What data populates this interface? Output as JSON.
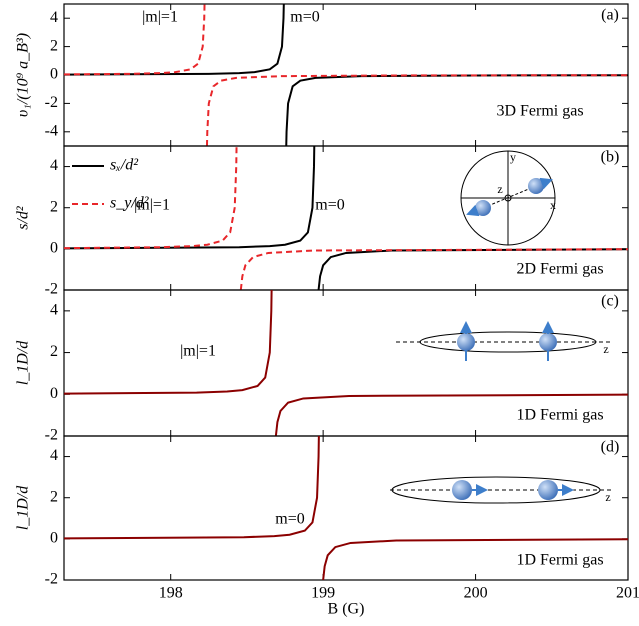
{
  "chart_data": [
    {
      "type": "line",
      "label": "(a)",
      "ylabel": "υ₁/(10⁹ a_B³)",
      "annotations": [
        "|m|=1",
        "m=0",
        "3D Fermi gas"
      ],
      "xlim": [
        197.3,
        201
      ],
      "xticks": [
        198,
        199,
        200,
        201
      ],
      "ylim": [
        -5,
        5
      ],
      "yticks": [
        -4,
        -2,
        0,
        2,
        4
      ],
      "series": [
        {
          "name": "m=0",
          "color": "#000000",
          "dash": false,
          "x": [
            197.3,
            198.25,
            198.45,
            198.55,
            198.65,
            198.7,
            198.73,
            198.74,
            198.742,
            null,
            198.758,
            198.76,
            198.77,
            198.8,
            198.85,
            198.95,
            199.25,
            200,
            201
          ],
          "values": [
            0.028,
            0.08,
            0.133,
            0.2,
            0.4,
            0.8,
            2,
            4,
            5,
            null,
            -5,
            -4,
            -2,
            -0.8,
            -0.4,
            -0.2,
            -0.08,
            -0.032,
            -0.018
          ]
        },
        {
          "name": "|m|=1",
          "color": "#e8262a",
          "dash": true,
          "x": [
            197.3,
            197.73,
            197.93,
            198.03,
            198.13,
            198.18,
            198.21,
            198.22,
            198.222,
            null,
            198.238,
            198.24,
            198.25,
            198.28,
            198.33,
            198.43,
            198.73,
            199.5,
            201
          ],
          "values": [
            0.043,
            0.08,
            0.133,
            0.2,
            0.4,
            0.8,
            2,
            4,
            5,
            null,
            -5,
            -4,
            -2,
            -0.8,
            -0.4,
            -0.2,
            -0.08,
            -0.031,
            -0.014
          ]
        }
      ]
    },
    {
      "type": "line",
      "label": "(b)",
      "ylabel": "s/d²",
      "annotations": [
        "|m|=1",
        "m=0",
        "2D Fermi gas"
      ],
      "inset_labels": [
        "x",
        "y",
        "z"
      ],
      "legend": "upper left",
      "xlim": [
        197.3,
        201
      ],
      "xticks": [
        198,
        199,
        200,
        201
      ],
      "ylim": [
        -2,
        5
      ],
      "yticks": [
        -2,
        0,
        2,
        4
      ],
      "series": [
        {
          "name": "sₓ/d²",
          "color": "#000000",
          "dash": false,
          "x": [
            197.3,
            198.45,
            198.65,
            198.75,
            198.85,
            198.9,
            198.93,
            198.94,
            198.942,
            null,
            198.97,
            198.98,
            199,
            199.05,
            199.15,
            199.45,
            201
          ],
          "values": [
            0.024,
            0.08,
            0.133,
            0.2,
            0.4,
            0.8,
            2,
            4,
            5,
            null,
            -2,
            -1.333,
            -0.8,
            -0.4,
            -0.2,
            -0.08,
            -0.02
          ]
        },
        {
          "name": "s_y/d²",
          "color": "#e8262a",
          "dash": true,
          "x": [
            197.3,
            197.94,
            198.14,
            198.24,
            198.34,
            198.39,
            198.42,
            198.43,
            198.432,
            null,
            198.46,
            198.47,
            198.49,
            198.54,
            198.64,
            198.94,
            201
          ],
          "values": [
            0.035,
            0.08,
            0.133,
            0.2,
            0.4,
            0.8,
            2,
            4,
            5,
            null,
            -2,
            -1.333,
            -0.8,
            -0.4,
            -0.2,
            -0.08,
            -0.016
          ]
        }
      ]
    },
    {
      "type": "line",
      "label": "(c)",
      "ylabel": "l_1D/d",
      "annotations": [
        "|m|=1",
        "1D Fermi gas"
      ],
      "inset_labels": [
        "z"
      ],
      "xlim": [
        197.3,
        201
      ],
      "xticks": [
        198,
        199,
        200,
        201
      ],
      "ylim": [
        -2,
        5
      ],
      "yticks": [
        -2,
        0,
        2,
        4
      ],
      "series": [
        {
          "name": "|m|=1",
          "color": "#8b0000",
          "dash": false,
          "x": [
            197.3,
            198.17,
            198.37,
            198.47,
            198.57,
            198.62,
            198.65,
            198.66,
            198.662,
            null,
            198.69,
            198.7,
            198.72,
            198.77,
            198.87,
            199.17,
            201
          ],
          "values": [
            0.029,
            0.08,
            0.133,
            0.2,
            0.4,
            0.8,
            2,
            4,
            5,
            null,
            -2,
            -1.333,
            -0.8,
            -0.4,
            -0.2,
            -0.08,
            -0.017
          ]
        }
      ]
    },
    {
      "type": "line",
      "label": "(d)",
      "ylabel": "l_1D/d",
      "xlabel": "B (G)",
      "annotations": [
        "m=0",
        "1D Fermi gas"
      ],
      "inset_labels": [
        "z"
      ],
      "xlim": [
        197.3,
        201
      ],
      "xticks": [
        198,
        199,
        200,
        201
      ],
      "ylim": [
        -2,
        5
      ],
      "yticks": [
        -2,
        0,
        2,
        4
      ],
      "series": [
        {
          "name": "m=0",
          "color": "#8b0000",
          "dash": false,
          "x": [
            197.3,
            198.48,
            198.68,
            198.78,
            198.88,
            198.93,
            198.96,
            198.97,
            198.972,
            null,
            199,
            199.01,
            199.03,
            199.08,
            199.18,
            199.48,
            201
          ],
          "values": [
            0.024,
            0.08,
            0.133,
            0.2,
            0.4,
            0.8,
            2,
            4,
            5,
            null,
            -2,
            -1.333,
            -0.8,
            -0.4,
            -0.2,
            -0.08,
            -0.02
          ]
        }
      ]
    }
  ]
}
